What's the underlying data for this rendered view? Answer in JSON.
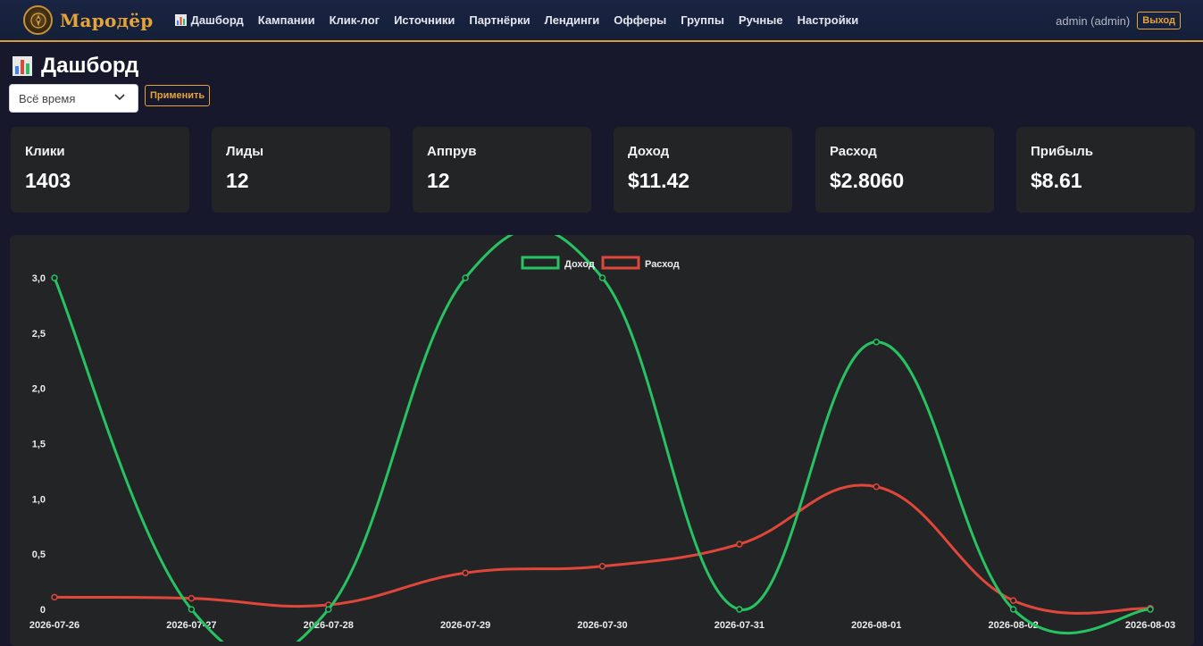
{
  "brand": {
    "name": "Мародёр"
  },
  "nav": {
    "items": [
      {
        "key": "dashboard",
        "label": "Дашборд",
        "icon": "bar-chart-icon"
      },
      {
        "key": "campaigns",
        "label": "Кампании"
      },
      {
        "key": "clicklog",
        "label": "Клик-лог"
      },
      {
        "key": "sources",
        "label": "Источники"
      },
      {
        "key": "partners",
        "label": "Партнёрки"
      },
      {
        "key": "landings",
        "label": "Лендинги"
      },
      {
        "key": "offers",
        "label": "Офферы"
      },
      {
        "key": "groups",
        "label": "Группы"
      },
      {
        "key": "manual",
        "label": "Ручные"
      },
      {
        "key": "settings",
        "label": "Настройки"
      }
    ],
    "user": "admin (admin)",
    "logout": "Выход"
  },
  "page": {
    "title": "Дашборд",
    "period": {
      "value": "Всё время",
      "icon": "chevron-down-icon"
    },
    "apply": "Применить"
  },
  "stats": [
    {
      "label": "Клики",
      "value": "1403"
    },
    {
      "label": "Лиды",
      "value": "12"
    },
    {
      "label": "Аппрув",
      "value": "12"
    },
    {
      "label": "Доход",
      "value": "$11.42"
    },
    {
      "label": "Расход",
      "value": "$2.8060"
    },
    {
      "label": "Прибыль",
      "value": "$8.61"
    }
  ],
  "colors": {
    "accent": "#e5a43b",
    "income": "#27c261",
    "expense": "#e0463a"
  },
  "chart_data": {
    "type": "line",
    "title": "",
    "xlabel": "",
    "ylabel": "",
    "x": [
      "2026-07-26",
      "2026-07-27",
      "2026-07-28",
      "2026-07-29",
      "2026-07-30",
      "2026-07-31",
      "2026-08-01",
      "2026-08-02",
      "2026-08-03"
    ],
    "series": [
      {
        "name": "Доход",
        "color": "#27c261",
        "values": [
          3.0,
          0,
          0,
          3.0,
          3.0,
          0,
          2.42,
          0,
          0
        ]
      },
      {
        "name": "Расход",
        "color": "#e0463a",
        "values": [
          0.11,
          0.1,
          0.04,
          0.33,
          0.39,
          0.59,
          1.11,
          0.08,
          0.01
        ]
      }
    ],
    "ylim": [
      0,
      3.0
    ],
    "yticks": [
      "0",
      "0,5",
      "1,0",
      "1,5",
      "2,0",
      "2,5",
      "3,0"
    ],
    "legend_position": "top-center",
    "grid": false
  }
}
